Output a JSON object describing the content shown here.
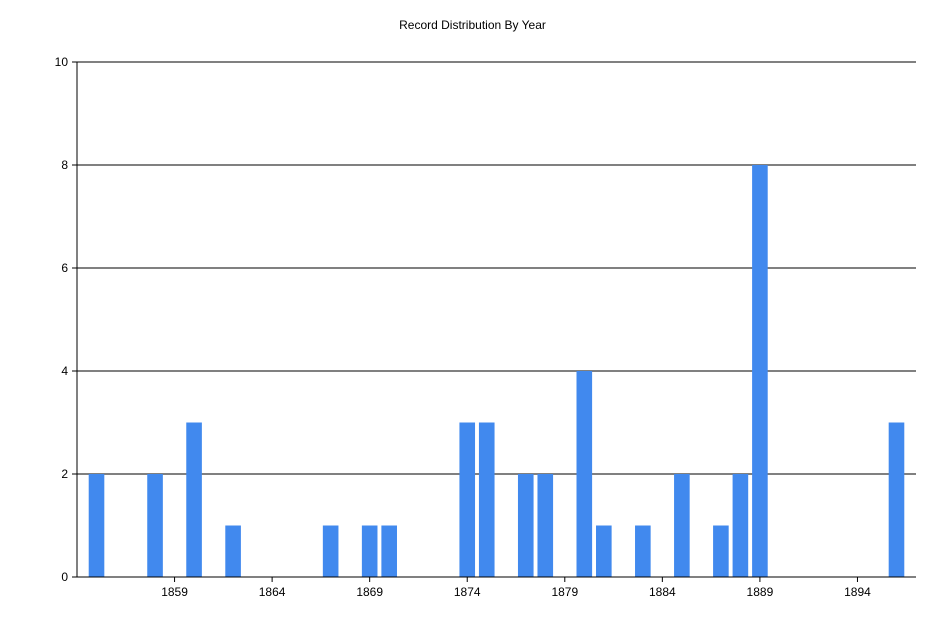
{
  "chart_data": {
    "type": "bar",
    "title": "Record Distribution By Year",
    "xlabel": "",
    "ylabel": "",
    "x": [
      1855,
      1858,
      1860,
      1862,
      1867,
      1869,
      1870,
      1874,
      1875,
      1877,
      1878,
      1880,
      1881,
      1883,
      1885,
      1887,
      1888,
      1889,
      1896
    ],
    "values": [
      2,
      2,
      3,
      1,
      1,
      1,
      1,
      3,
      3,
      2,
      2,
      4,
      1,
      1,
      2,
      1,
      2,
      8,
      3
    ],
    "xlim": [
      1854,
      1897
    ],
    "ylim": [
      0,
      10
    ],
    "xticks": [
      1859,
      1864,
      1869,
      1874,
      1879,
      1884,
      1889,
      1894
    ],
    "yticks": [
      0,
      2,
      4,
      6,
      8,
      10
    ],
    "grid": "horizontal",
    "bar_color": "#4189ee"
  }
}
